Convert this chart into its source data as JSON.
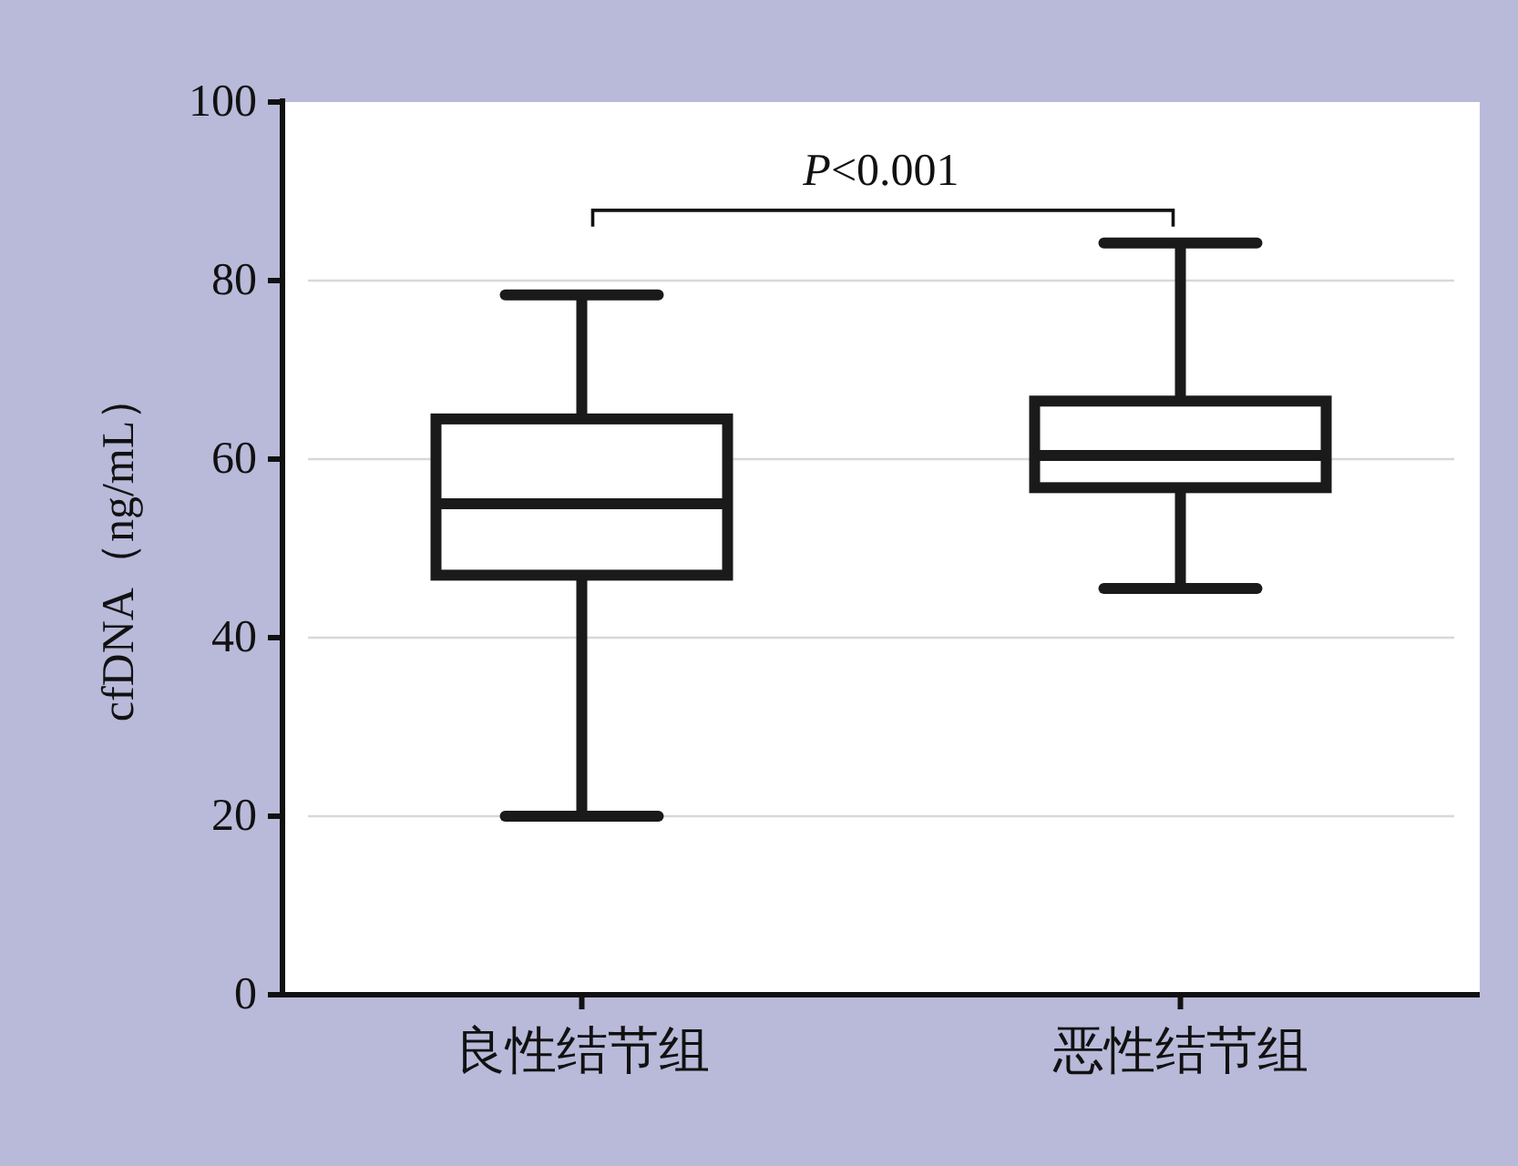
{
  "chart_data": {
    "type": "box",
    "ylabel": "cfDNA（ng/mL）",
    "categories": [
      "良性结节组",
      "恶性结节组"
    ],
    "boxes": [
      {
        "low": 20.0,
        "q1": 47.0,
        "median": 55.0,
        "q3": 64.5,
        "high": 78.4
      },
      {
        "low": 45.5,
        "q1": 56.8,
        "median": 60.4,
        "q3": 66.5,
        "high": 84.2
      }
    ],
    "ylim": [
      0,
      100
    ],
    "yticks": [
      0,
      20,
      40,
      60,
      80,
      100
    ],
    "grid": "y",
    "color": "#1a1a1a",
    "annotations": [
      "P<0.001"
    ]
  }
}
